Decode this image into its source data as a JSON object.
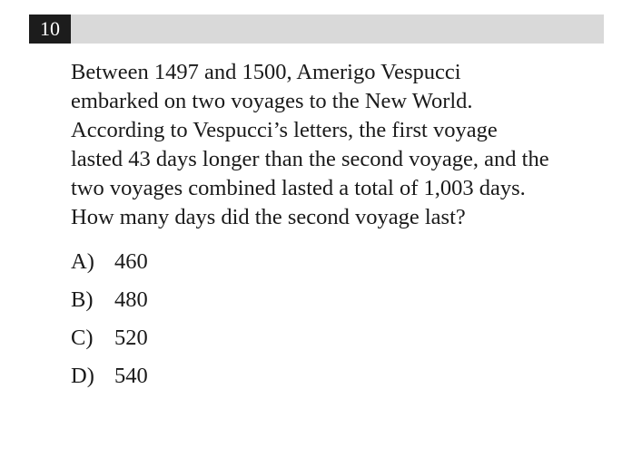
{
  "question": {
    "number": "10",
    "stem_lines": [
      "Between 1497 and 1500, Amerigo Vespucci",
      "embarked on two voyages to the New World.",
      "According to Vespucci’s letters, the first voyage",
      "lasted 43 days longer than the second voyage, and the",
      "two voyages combined lasted a total of 1,003 days.",
      "How many days did the second voyage last?"
    ],
    "choices": [
      {
        "letter": "A)",
        "value": "460"
      },
      {
        "letter": "B)",
        "value": "480"
      },
      {
        "letter": "C)",
        "value": "520"
      },
      {
        "letter": "D)",
        "value": "540"
      }
    ]
  }
}
